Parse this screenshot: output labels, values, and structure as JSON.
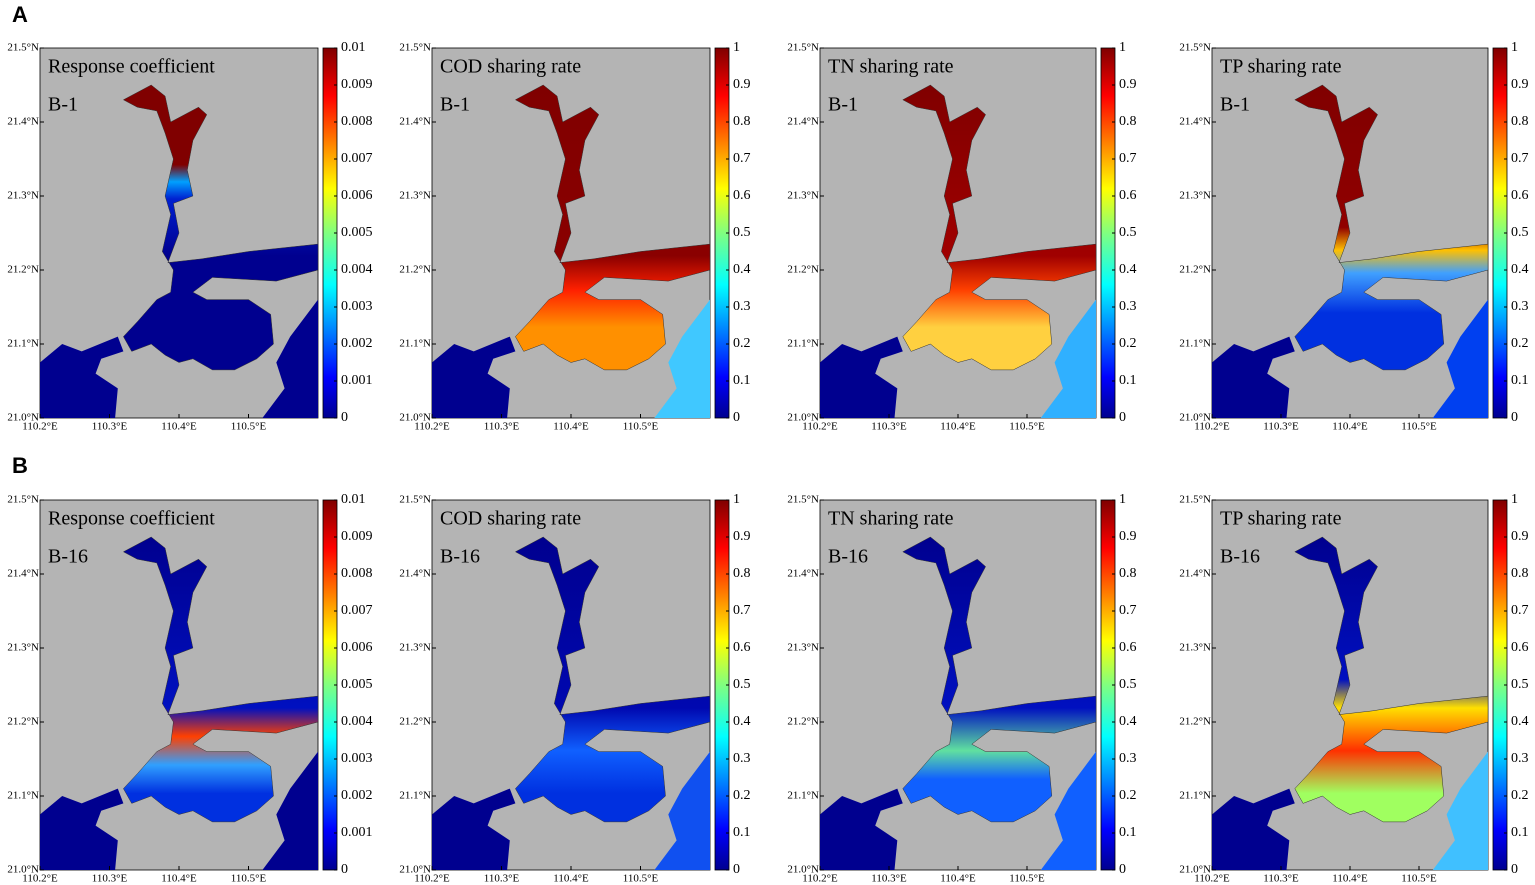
{
  "lat_lim": [
    21.0,
    21.5
  ],
  "lon_lim": [
    110.2,
    110.6
  ],
  "lat_ticks": [
    {
      "value": 21.0,
      "label": "21.0°N"
    },
    {
      "value": 21.1,
      "label": "21.1°N"
    },
    {
      "value": 21.2,
      "label": "21.2°N"
    },
    {
      "value": 21.3,
      "label": "21.3°N"
    },
    {
      "value": 21.4,
      "label": "21.4°N"
    },
    {
      "value": 21.5,
      "label": "21.5°N"
    }
  ],
  "lon_ticks": [
    {
      "value": 110.2,
      "label": "110.2°E"
    },
    {
      "value": 110.3,
      "label": "110.3°E"
    },
    {
      "value": 110.4,
      "label": "110.4°E"
    },
    {
      "value": 110.5,
      "label": "110.5°E"
    }
  ],
  "rows": [
    {
      "label": "A",
      "maps": [
        {
          "title": "Response coefficient",
          "scenario": "B-1",
          "cbar_lim": [
            0,
            0.01
          ],
          "cbar_ticks": [
            0,
            0.001,
            0.002,
            0.003,
            0.004,
            0.005,
            0.006,
            0.007,
            0.008,
            0.009,
            0.01
          ]
        },
        {
          "title": "COD sharing rate",
          "scenario": "B-1",
          "cbar_lim": [
            0,
            1
          ],
          "cbar_ticks": [
            0,
            0.1,
            0.2,
            0.3,
            0.4,
            0.5,
            0.6,
            0.7,
            0.8,
            0.9,
            1
          ]
        },
        {
          "title": "TN sharing rate",
          "scenario": "B-1",
          "cbar_lim": [
            0,
            1
          ],
          "cbar_ticks": [
            0,
            0.1,
            0.2,
            0.3,
            0.4,
            0.5,
            0.6,
            0.7,
            0.8,
            0.9,
            1
          ]
        },
        {
          "title": "TP sharing rate",
          "scenario": "B-1",
          "cbar_lim": [
            0,
            1
          ],
          "cbar_ticks": [
            0,
            0.1,
            0.2,
            0.3,
            0.4,
            0.5,
            0.6,
            0.7,
            0.8,
            0.9,
            1
          ]
        }
      ]
    },
    {
      "label": "B",
      "maps": [
        {
          "title": "Response coefficient",
          "scenario": "B-16",
          "cbar_lim": [
            0,
            0.01
          ],
          "cbar_ticks": [
            0,
            0.001,
            0.002,
            0.003,
            0.004,
            0.005,
            0.006,
            0.007,
            0.008,
            0.009,
            0.01
          ]
        },
        {
          "title": "COD sharing rate",
          "scenario": "B-16",
          "cbar_lim": [
            0,
            1
          ],
          "cbar_ticks": [
            0,
            0.1,
            0.2,
            0.3,
            0.4,
            0.5,
            0.6,
            0.7,
            0.8,
            0.9,
            1
          ]
        },
        {
          "title": "TN sharing rate",
          "scenario": "B-16",
          "cbar_lim": [
            0,
            1
          ],
          "cbar_ticks": [
            0,
            0.1,
            0.2,
            0.3,
            0.4,
            0.5,
            0.6,
            0.7,
            0.8,
            0.9,
            1
          ]
        },
        {
          "title": "TP sharing rate",
          "scenario": "B-16",
          "cbar_lim": [
            0,
            1
          ],
          "cbar_ticks": [
            0,
            0.1,
            0.2,
            0.3,
            0.4,
            0.5,
            0.6,
            0.7,
            0.8,
            0.9,
            1
          ]
        }
      ]
    }
  ]
}
